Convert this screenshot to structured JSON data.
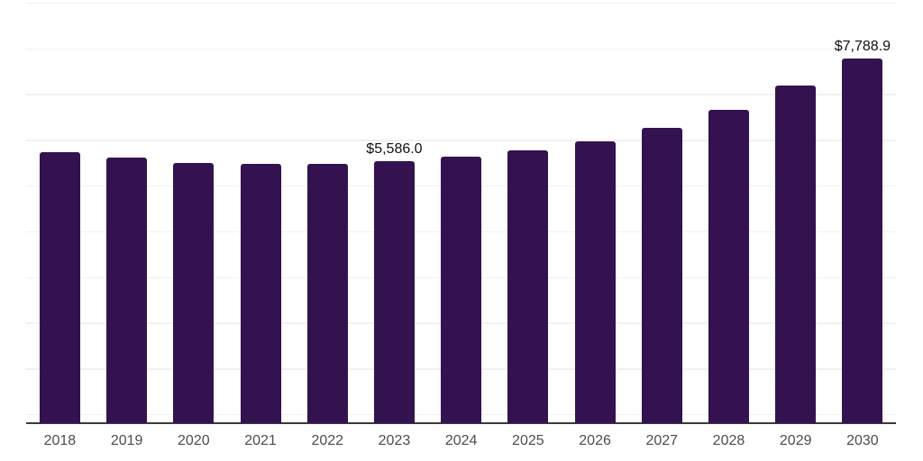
{
  "chart_data": {
    "type": "bar",
    "title": "",
    "xlabel": "",
    "ylabel": "",
    "categories": [
      "2018",
      "2019",
      "2020",
      "2021",
      "2022",
      "2023",
      "2024",
      "2025",
      "2026",
      "2027",
      "2028",
      "2029",
      "2030"
    ],
    "values": [
      5785,
      5670,
      5560,
      5530,
      5540,
      5586.0,
      5680,
      5815,
      6010,
      6295,
      6690,
      7205,
      7788.9
    ],
    "point_labels": {
      "2023": "$5,586.0",
      "2030": "$7,788.9"
    },
    "ylim": [
      0,
      9030
    ],
    "grid": "horizontal",
    "legend": "none",
    "colors": {
      "bar_fill": "#341250",
      "axis_line": "#3a3a3a",
      "gridline": "#f1f1f1",
      "tick_label": "#4d4d4d",
      "value_label": "#111111",
      "background": "#ffffff"
    }
  }
}
